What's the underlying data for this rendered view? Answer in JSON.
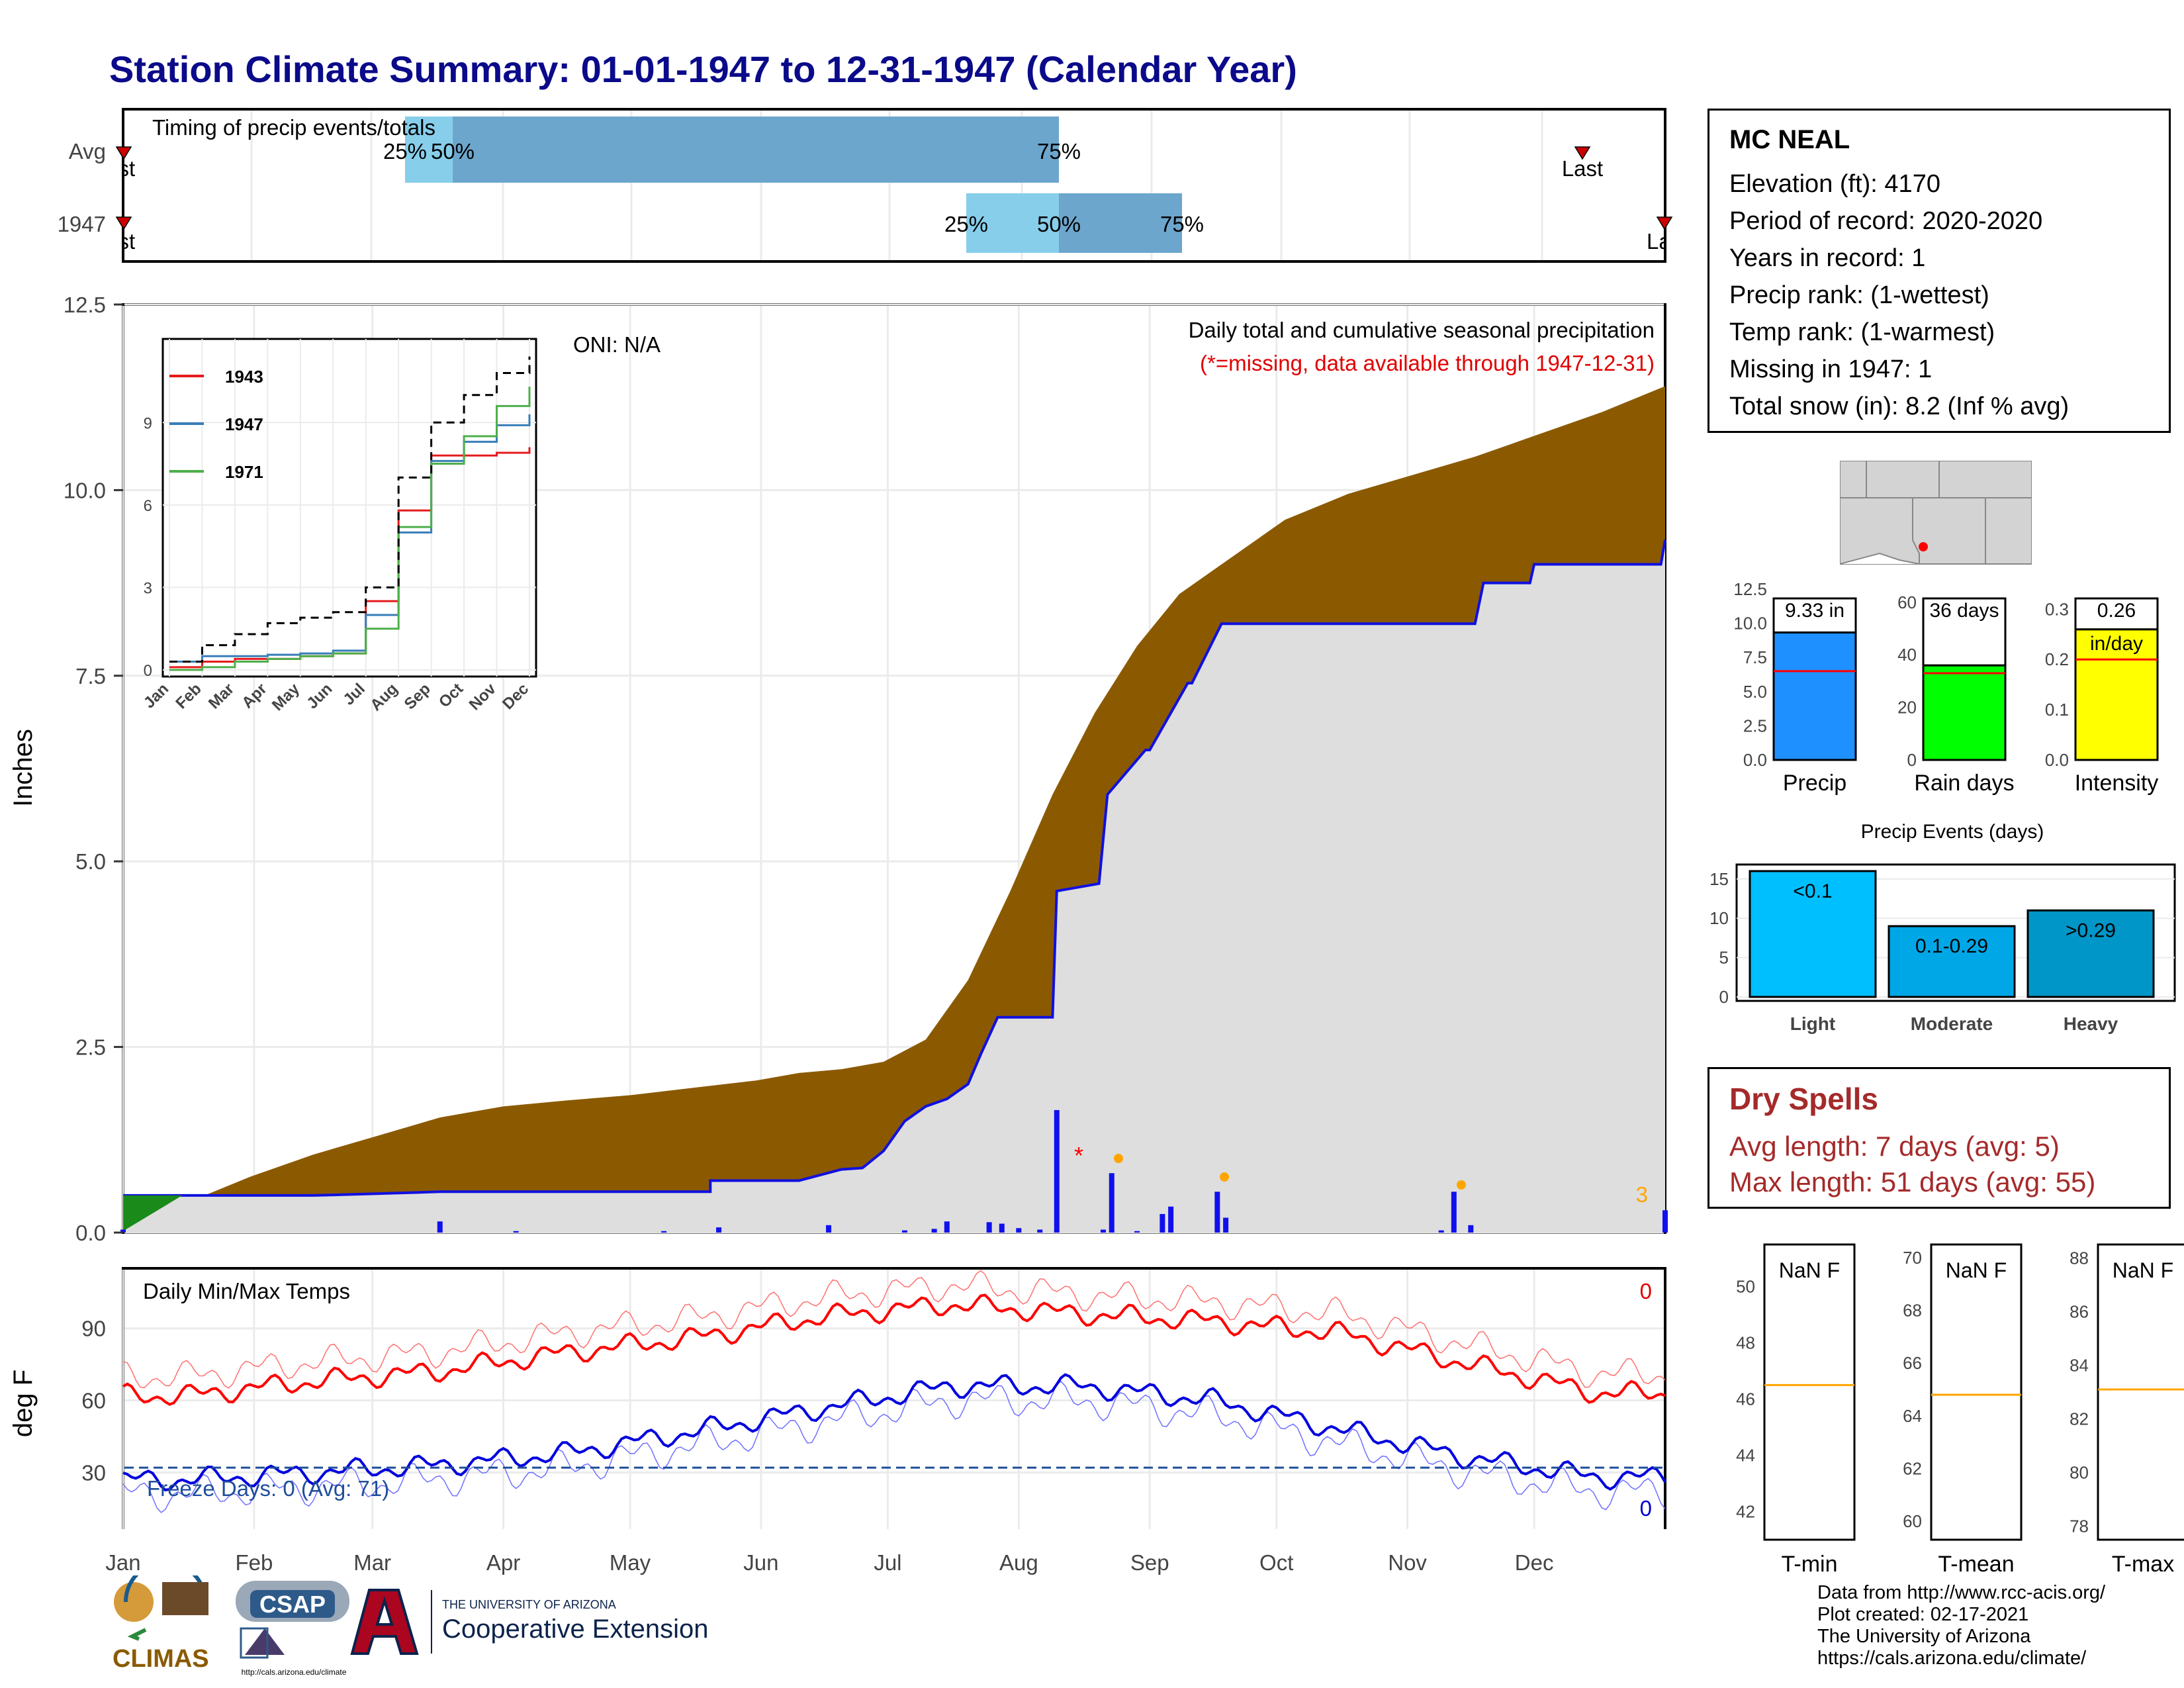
{
  "title": "Station Climate Summary: 01-01-1947 to 12-31-1947 (Calendar Year)",
  "timing": {
    "title": "Timing of precip events/totals",
    "row_labels": [
      "Avg",
      "1947"
    ],
    "avg": {
      "p25_label": "25%",
      "p50_label": "50%",
      "p75_label": "75%",
      "first_label": "First",
      "last_label": "Last"
    },
    "year": {
      "p25_label": "25%",
      "p50_label": "50%",
      "p75_label": "75%",
      "first_label": "First",
      "last_label": "Last"
    }
  },
  "main": {
    "ylabel": "Inches",
    "note1": "Daily total and cumulative seasonal precipitation",
    "note2": "(*=missing, data available through 1947-12-31)",
    "oni": "ONI: N/A",
    "corner_count": "3",
    "yticks": [
      "0.0",
      "2.5",
      "5.0",
      "7.5",
      "10.0",
      "12.5"
    ]
  },
  "inset": {
    "legend": [
      "1943",
      "1947",
      "1971"
    ],
    "legend_colors": [
      "#e41a1c",
      "#377eb8",
      "#4daf4a"
    ],
    "yticks": [
      "0",
      "3",
      "6",
      "9"
    ],
    "xticks": [
      "Jan",
      "Feb",
      "Mar",
      "Apr",
      "May",
      "Jun",
      "Jul",
      "Aug",
      "Sep",
      "Oct",
      "Nov",
      "Dec"
    ]
  },
  "temps": {
    "title": "Daily Min/Max Temps",
    "ylabel": "deg F",
    "yticks": [
      "30",
      "60",
      "90"
    ],
    "freeze": "Freeze Days: 0 (Avg: 71)",
    "count_top": "0",
    "count_bottom": "0"
  },
  "months": [
    "Jan",
    "Feb",
    "Mar",
    "Apr",
    "May",
    "Jun",
    "Jul",
    "Aug",
    "Sep",
    "Oct",
    "Nov",
    "Dec"
  ],
  "info": {
    "station": "MC NEAL",
    "lines": [
      "Elevation (ft): 4170",
      "Period of record: 2020-2020",
      "Years in record: 1",
      "Precip rank:  (1-wettest)",
      "Temp rank:  (1-warmest)",
      "Missing in 1947: 1",
      "Total snow (in): 8.2 (Inf % avg)"
    ]
  },
  "mini_bars": {
    "precip": {
      "label": "Precip",
      "value_label": "9.33 in",
      "yticks": [
        "0.0",
        "2.5",
        "5.0",
        "7.5",
        "10.0",
        "12.5"
      ]
    },
    "raindays": {
      "label": "Rain days",
      "value_label": "36 days",
      "yticks": [
        "0",
        "20",
        "40",
        "60"
      ]
    },
    "intensity": {
      "label": "Intensity",
      "value_label": "0.26",
      "value_unit": "in/day",
      "yticks": [
        "0.0",
        "0.1",
        "0.2",
        "0.3"
      ]
    }
  },
  "events": {
    "title": "Precip Events (days)",
    "yticks": [
      "0",
      "5",
      "10",
      "15"
    ],
    "categories": [
      "Light",
      "Moderate",
      "Heavy"
    ],
    "bar_labels": [
      "<0.1",
      "0.1-0.29",
      ">0.29"
    ]
  },
  "dry": {
    "title": "Dry Spells",
    "avg": "Avg length: 7 days (avg: 5)",
    "max": "Max length: 51 days (avg: 55)"
  },
  "temp_boxes": [
    {
      "label": "T-min",
      "value": "NaN F",
      "yticks": [
        "42",
        "44",
        "46",
        "48",
        "50"
      ]
    },
    {
      "label": "T-mean",
      "value": "NaN F",
      "yticks": [
        "60",
        "62",
        "64",
        "66",
        "68",
        "70"
      ]
    },
    {
      "label": "T-max",
      "value": "NaN F",
      "yticks": [
        "78",
        "80",
        "82",
        "84",
        "86",
        "88"
      ]
    }
  ],
  "credits": [
    "Data from http://www.rcc-acis.org/",
    "Plot created: 02-17-2021",
    "The University of Arizona",
    "https://cals.arizona.edu/climate/"
  ],
  "logos": {
    "climas": "CLIMAS",
    "csap": "CSAP",
    "csap_url": "http://cals.arizona.edu/climate",
    "ua_line1": "THE UNIVERSITY OF ARIZONA",
    "ua_line2": "Cooperative Extension"
  },
  "colors": {
    "title": "#0a0a8a",
    "cumulative_fill": "#8b5a00",
    "observed_fill": "#dedede",
    "observed_line": "#1010e0",
    "tmax": "#ff0000",
    "tmin": "#0000dd",
    "precip_bar": "#1e90ff",
    "raindays_bar": "#00ff00",
    "intensity_bar": "#ffff00",
    "light_bar": "#00bfff",
    "moderate_bar": "#00a7e6",
    "heavy_bar": "#0096c7",
    "dry_text": "#a52a2a",
    "avg_line": "#ffa500"
  },
  "chart_data": [
    {
      "type": "area",
      "title": "Daily total and cumulative seasonal precipitation",
      "ylabel": "Inches",
      "ylim": [
        0,
        12.5
      ],
      "xlim_days": [
        0,
        365
      ],
      "series": [
        {
          "name": "Avg cumulative",
          "x_day": [
            0,
            15,
            30,
            45,
            60,
            75,
            90,
            105,
            120,
            135,
            150,
            160,
            170,
            180,
            190,
            200,
            210,
            220,
            230,
            240,
            250,
            265,
            275,
            290,
            305,
            320,
            335,
            350,
            365
          ],
          "values": [
            0,
            0.4,
            0.75,
            1.05,
            1.3,
            1.55,
            1.7,
            1.78,
            1.85,
            1.95,
            2.05,
            2.15,
            2.2,
            2.3,
            2.6,
            3.4,
            4.6,
            5.9,
            7.0,
            7.9,
            8.6,
            9.2,
            9.6,
            9.95,
            10.2,
            10.45,
            10.75,
            11.05,
            11.4
          ]
        },
        {
          "name": "1947 cumulative",
          "x_day": [
            0,
            45,
            58,
            75,
            139,
            139,
            160,
            170,
            175,
            180,
            185,
            190,
            195,
            200,
            203,
            207,
            210,
            220,
            221,
            231,
            233,
            242,
            243,
            252,
            253,
            260,
            320,
            322,
            333,
            334,
            364,
            365
          ],
          "values": [
            0.5,
            0.5,
            0.52,
            0.55,
            0.55,
            0.7,
            0.7,
            0.85,
            0.87,
            1.1,
            1.5,
            1.7,
            1.8,
            2.0,
            2.4,
            2.9,
            2.9,
            2.9,
            4.6,
            4.7,
            5.9,
            6.5,
            6.5,
            7.4,
            7.4,
            8.2,
            8.2,
            8.75,
            8.75,
            9.0,
            9.0,
            9.33
          ]
        }
      ],
      "daily_bars": {
        "x_day": [
          0,
          75,
          93,
          128,
          141,
          167,
          185,
          192,
          195,
          205,
          208,
          212,
          217,
          221,
          232,
          234,
          240,
          246,
          248,
          259,
          261,
          312,
          315,
          319,
          365
        ],
        "values": [
          0.04,
          0.15,
          0.02,
          0.02,
          0.07,
          0.1,
          0.03,
          0.05,
          0.15,
          0.14,
          0.12,
          0.06,
          0.04,
          1.65,
          0.04,
          0.8,
          0.02,
          0.25,
          0.35,
          0.55,
          0.2,
          0.03,
          0.55,
          0.1,
          0.3
        ]
      }
    },
    {
      "type": "line",
      "title": "Daily Min/Max Temps",
      "ylabel": "deg F",
      "x": [
        "Jan",
        "Feb",
        "Mar",
        "Apr",
        "May",
        "Jun",
        "Jul",
        "Aug",
        "Sep",
        "Oct",
        "Nov",
        "Dec"
      ],
      "series": [
        {
          "name": "Avg Tmax",
          "values": [
            62,
            68,
            72,
            80,
            86,
            95,
            100,
            96,
            93,
            88,
            75,
            63
          ]
        },
        {
          "name": "Avg Tmin",
          "values": [
            27,
            30,
            33,
            38,
            47,
            57,
            66,
            66,
            60,
            48,
            36,
            28
          ]
        },
        {
          "name": "Freeze threshold",
          "values": [
            32,
            32,
            32,
            32,
            32,
            32,
            32,
            32,
            32,
            32,
            32,
            32
          ]
        }
      ]
    },
    {
      "type": "line",
      "title": "",
      "x": [
        "Jan",
        "Feb",
        "Mar",
        "Apr",
        "May",
        "Jun",
        "Jul",
        "Aug",
        "Sep",
        "Oct",
        "Nov",
        "Dec"
      ],
      "series": [
        {
          "name": "1943",
          "values": [
            0.1,
            0.3,
            0.4,
            0.4,
            0.5,
            0.6,
            2.5,
            5.8,
            7.8,
            7.8,
            7.9,
            8.1
          ]
        },
        {
          "name": "1947",
          "values": [
            0.3,
            0.5,
            0.5,
            0.55,
            0.6,
            0.7,
            2.0,
            5.0,
            7.6,
            8.3,
            8.9,
            9.3
          ]
        },
        {
          "name": "1971",
          "values": [
            0,
            0.1,
            0.3,
            0.4,
            0.5,
            0.6,
            1.5,
            5.2,
            7.5,
            8.5,
            9.6,
            10.3
          ]
        },
        {
          "name": "avg",
          "values": [
            0.3,
            0.9,
            1.3,
            1.7,
            1.9,
            2.1,
            3.0,
            7.0,
            9.0,
            10.0,
            10.8,
            11.4
          ]
        }
      ],
      "ylim": [
        0,
        11.5
      ]
    },
    {
      "type": "bar",
      "title": "Precip Events (days)",
      "categories": [
        "Light",
        "Moderate",
        "Heavy"
      ],
      "values": [
        16,
        9,
        11
      ],
      "ylim": [
        0,
        16
      ]
    },
    {
      "type": "bar",
      "categories": [
        "Precip",
        "Rain days",
        "Intensity"
      ],
      "values": [
        9.33,
        36,
        0.26
      ],
      "averages": [
        6.5,
        33,
        0.2
      ]
    }
  ]
}
